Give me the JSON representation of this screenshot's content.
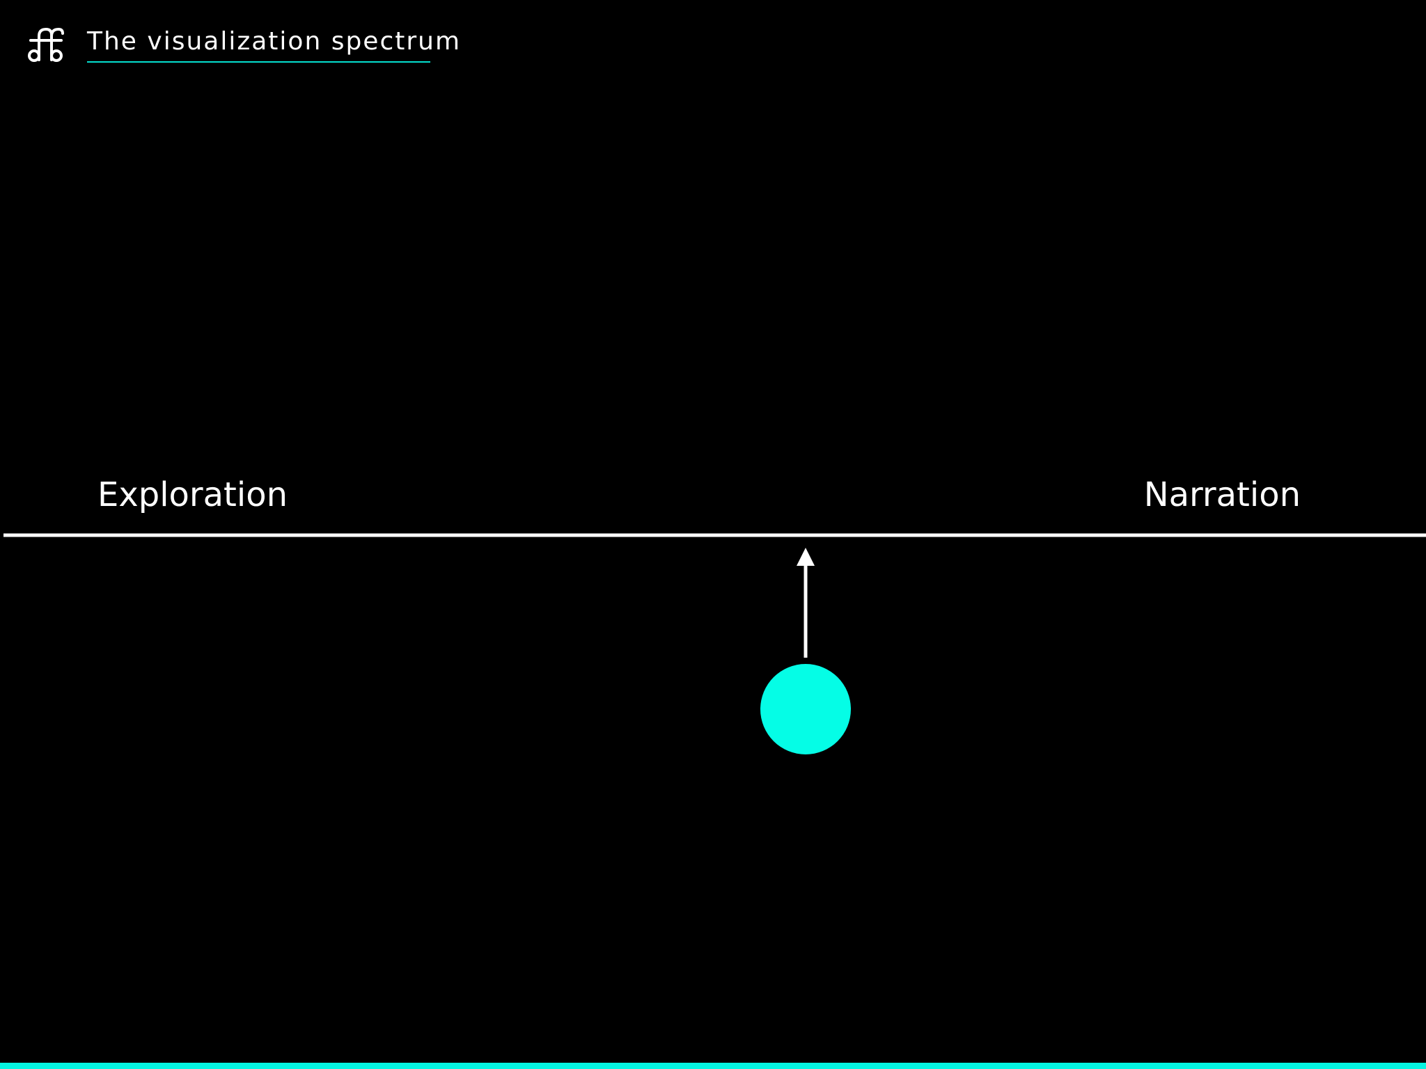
{
  "header": {
    "title": "The visualization spectrum"
  },
  "spectrum": {
    "left_label": "Exploration",
    "right_label": "Narration"
  }
}
